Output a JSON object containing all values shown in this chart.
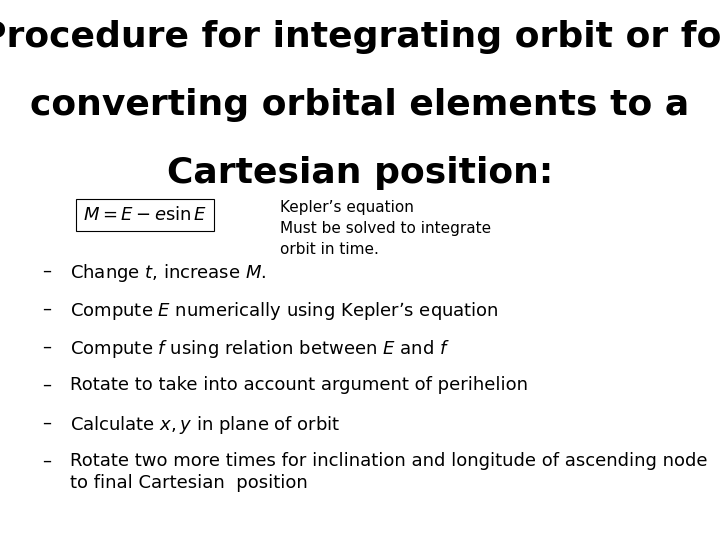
{
  "title_lines": [
    "Procedure for integrating orbit or for",
    "converting orbital elements to a",
    "Cartesian position:"
  ],
  "equation": "$M = E - e\\sin E$",
  "kepler_annotation": "Kepler’s equation\nMust be solved to integrate\norbit in time.",
  "bullet_items": [
    "Change $t$, increase $M$.",
    "Compute $E$ numerically using Kepler’s equation",
    "Compute $f$ using relation between $E$ and $f$",
    "Rotate to take into account argument of perihelion",
    "Calculate $x,y$ in plane of orbit",
    "Rotate two more times for inclination and longitude of ascending node\nto final Cartesian  position"
  ],
  "background_color": "#ffffff",
  "text_color": "#000000",
  "title_fontsize": 26,
  "body_fontsize": 13,
  "annotation_fontsize": 11,
  "eq_fontsize": 13
}
